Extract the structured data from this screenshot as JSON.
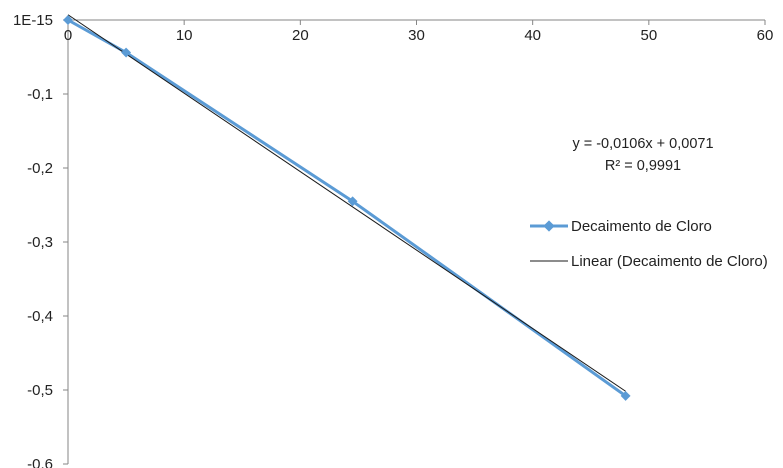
{
  "chart_data": {
    "type": "scatter",
    "title": "",
    "xlabel": "",
    "ylabel": "",
    "xlim": [
      0,
      60
    ],
    "ylim": [
      -0.6,
      0.0
    ],
    "x_ticks": [
      "0",
      "10",
      "20",
      "30",
      "40",
      "50",
      "60"
    ],
    "y_ticks": [
      "1E-15",
      "-0,1",
      "-0,2",
      "-0,3",
      "-0,4",
      "-0,5",
      "-0,6"
    ],
    "grid": false,
    "legend_position": "right",
    "series": [
      {
        "name": "Decaimento de Cloro",
        "color": "#5B9BD5",
        "marker": "diamond",
        "x": [
          0,
          5,
          24.5,
          48
        ],
        "y": [
          0.0,
          -0.044,
          -0.245,
          -0.508
        ]
      }
    ],
    "trendline": {
      "name": "Linear (Decaimento de Cloro)",
      "color": "#1a1a1a",
      "slope": -0.0106,
      "intercept": 0.0071,
      "x_range": [
        0,
        48
      ]
    },
    "annotation": {
      "equation": "y = -0,0106x + 0,0071",
      "r_squared": "R² = 0,9991"
    }
  }
}
